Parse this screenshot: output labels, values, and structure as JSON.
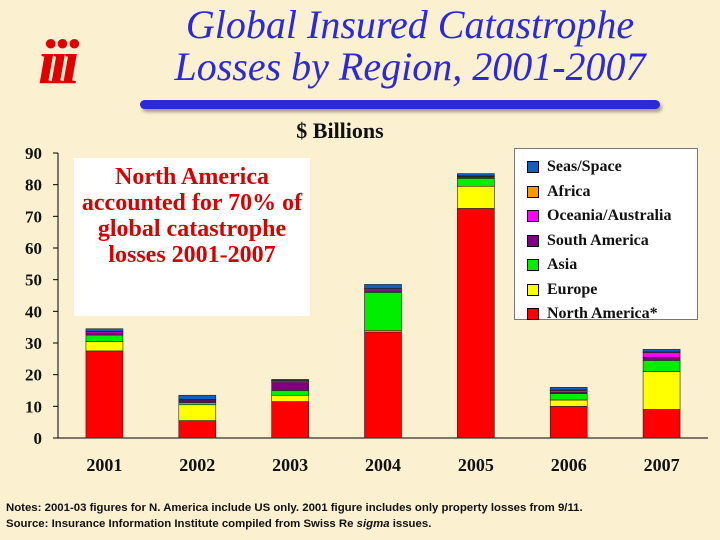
{
  "logo_text": "iii",
  "title_line1": "Global Insured Catastrophe",
  "title_line2": "Losses by Region, 2001-2007",
  "callout_text": "North America accounted for 70% of global catastrophe losses 2001-2007",
  "notes": {
    "line1": "Notes: 2001-03 figures for N. America include US only. 2001 figure includes only property losses from 9/11.",
    "line2_prefix": "Source:  Insurance Information Institute compiled from Swiss Re ",
    "line2_italic": "sigma",
    "line2_suffix": " issues."
  },
  "colors": {
    "title": "#2a2ad8",
    "logo": "#e00000",
    "callout_text": "#d80000",
    "background": "#fbf0d0"
  },
  "chart_data": {
    "type": "bar",
    "stacked": true,
    "title": "$ Billions",
    "xlabel": "",
    "ylabel": "",
    "ylim": [
      0,
      90
    ],
    "yticks": [
      0,
      10,
      20,
      30,
      40,
      50,
      60,
      70,
      80,
      90
    ],
    "categories": [
      "2001",
      "2002",
      "2003",
      "2004",
      "2005",
      "2006",
      "2007"
    ],
    "series": [
      {
        "name": "North America*",
        "color": "#ff0000",
        "values": [
          27.5,
          5.5,
          11.5,
          33.5,
          72.5,
          10.0,
          9.0
        ]
      },
      {
        "name": "Europe",
        "color": "#ffff00",
        "values": [
          3.0,
          5.0,
          2.0,
          0.5,
          7.0,
          2.0,
          12.0
        ]
      },
      {
        "name": "Asia",
        "color": "#00ee00",
        "values": [
          2.0,
          0.7,
          1.5,
          12.0,
          2.5,
          2.0,
          3.5
        ]
      },
      {
        "name": "South America",
        "color": "#800080",
        "values": [
          0.5,
          0.5,
          2.5,
          0.5,
          0.5,
          0.5,
          1.0
        ]
      },
      {
        "name": "Oceania/Australia",
        "color": "#ff00ff",
        "values": [
          0.5,
          0.3,
          0.5,
          0.5,
          0.2,
          0.5,
          1.5
        ]
      },
      {
        "name": "Africa",
        "color": "#ff9900",
        "values": [
          0.2,
          0.2,
          0.2,
          0.2,
          0.1,
          0.2,
          0.2
        ]
      },
      {
        "name": "Seas/Space",
        "color": "#1060c0",
        "values": [
          0.8,
          1.3,
          0.3,
          1.3,
          0.7,
          0.8,
          0.8
        ]
      }
    ],
    "legend_order": [
      "Seas/Space",
      "Africa",
      "Oceania/Australia",
      "South America",
      "Asia",
      "Europe",
      "North America*"
    ]
  }
}
